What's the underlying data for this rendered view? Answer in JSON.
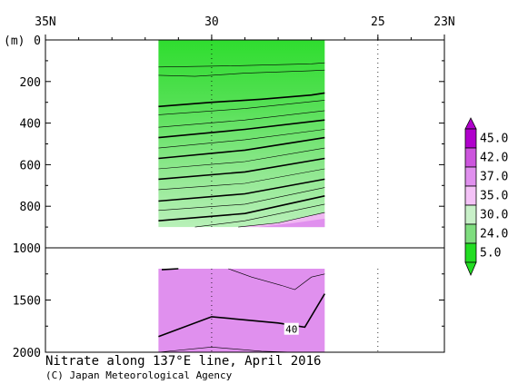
{
  "chart_data": {
    "type": "heatmap",
    "title": "Nitrate along 137°E line, April 2016",
    "credit": "(C) Japan Meteorological Agency",
    "x_axis": {
      "label_unit": "",
      "ticks": [
        "35N",
        "30",
        "25",
        "23N"
      ],
      "tick_values": [
        35,
        30,
        25,
        23
      ],
      "range": [
        35,
        23
      ]
    },
    "y_axis": {
      "unit": "(m)",
      "upper_panel": {
        "range": [
          0,
          1000
        ],
        "ticks": [
          "0",
          "200",
          "400",
          "600",
          "800",
          "1000"
        ]
      },
      "lower_panel": {
        "range": [
          1000,
          2000
        ],
        "ticks": [
          "1500",
          "2000"
        ]
      }
    },
    "data_extent": {
      "lat_north": 31.6,
      "lat_south": 26.6,
      "max_depth_upper": 900,
      "lower_depth_top": 1200
    },
    "colorbar": {
      "labels": [
        "45.0",
        "42.0",
        "37.0",
        "35.0",
        "30.0",
        "24.0",
        "5.0"
      ],
      "colors": [
        "#b000cc",
        "#cc55dd",
        "#e090ee",
        "#f4c2f7",
        "#c8f0c8",
        "#7fdd7f",
        "#22dd22"
      ]
    },
    "fills": {
      "surface_green": "#33dd33",
      "deep_purple": "#e090ee"
    },
    "upper_contours": [
      {
        "name": "c1",
        "heavy": false,
        "pts": [
          [
            31.6,
            130
          ],
          [
            29.5,
            125
          ],
          [
            27.0,
            115
          ],
          [
            26.6,
            110
          ]
        ]
      },
      {
        "name": "c2",
        "heavy": false,
        "pts": [
          [
            31.6,
            170
          ],
          [
            30.5,
            175
          ],
          [
            29.0,
            160
          ],
          [
            27.0,
            148
          ],
          [
            26.6,
            145
          ]
        ]
      },
      {
        "name": "c3",
        "heavy": true,
        "pts": [
          [
            31.6,
            320
          ],
          [
            30.0,
            300
          ],
          [
            28.5,
            285
          ],
          [
            27.0,
            265
          ],
          [
            26.6,
            255
          ]
        ]
      },
      {
        "name": "c4",
        "heavy": false,
        "pts": [
          [
            31.6,
            360
          ],
          [
            29.0,
            330
          ],
          [
            26.6,
            290
          ]
        ]
      },
      {
        "name": "c5",
        "heavy": false,
        "pts": [
          [
            31.6,
            420
          ],
          [
            29.0,
            385
          ],
          [
            26.6,
            340
          ]
        ]
      },
      {
        "name": "c6",
        "heavy": true,
        "pts": [
          [
            31.6,
            470
          ],
          [
            29.0,
            430
          ],
          [
            26.6,
            385
          ]
        ]
      },
      {
        "name": "c7",
        "heavy": false,
        "pts": [
          [
            31.6,
            520
          ],
          [
            29.0,
            480
          ],
          [
            26.6,
            430
          ]
        ]
      },
      {
        "name": "c8",
        "heavy": true,
        "pts": [
          [
            31.6,
            570
          ],
          [
            29.0,
            530
          ],
          [
            26.6,
            470
          ]
        ]
      },
      {
        "name": "c9",
        "heavy": false,
        "pts": [
          [
            31.6,
            620
          ],
          [
            29.0,
            585
          ],
          [
            26.6,
            520
          ]
        ]
      },
      {
        "name": "c10",
        "heavy": true,
        "pts": [
          [
            31.6,
            670
          ],
          [
            29.0,
            635
          ],
          [
            26.6,
            570
          ]
        ]
      },
      {
        "name": "c11",
        "heavy": false,
        "pts": [
          [
            31.6,
            720
          ],
          [
            29.0,
            690
          ],
          [
            26.6,
            620
          ]
        ]
      },
      {
        "name": "c12",
        "heavy": true,
        "pts": [
          [
            31.6,
            775
          ],
          [
            29.0,
            740
          ],
          [
            26.6,
            670
          ]
        ]
      },
      {
        "name": "c13",
        "heavy": false,
        "pts": [
          [
            31.6,
            820
          ],
          [
            29.0,
            790
          ],
          [
            26.6,
            710
          ]
        ]
      },
      {
        "name": "c14",
        "heavy": true,
        "pts": [
          [
            31.6,
            870
          ],
          [
            29.0,
            835
          ],
          [
            26.6,
            750
          ]
        ]
      },
      {
        "name": "c15",
        "heavy": false,
        "pts": [
          [
            30.5,
            900
          ],
          [
            29.0,
            870
          ],
          [
            26.6,
            790
          ]
        ]
      },
      {
        "name": "c16",
        "heavy": false,
        "pts": [
          [
            29.2,
            900
          ],
          [
            28.0,
            880
          ],
          [
            26.6,
            830
          ]
        ]
      }
    ],
    "lower_contours": [
      {
        "name": "d1",
        "heavy": true,
        "pts": [
          [
            31.5,
            1210
          ],
          [
            31.0,
            1200
          ]
        ]
      },
      {
        "name": "d2",
        "heavy": false,
        "pts": [
          [
            29.5,
            1200
          ],
          [
            28.8,
            1280
          ],
          [
            27.9,
            1360
          ],
          [
            27.5,
            1400
          ],
          [
            27.0,
            1280
          ],
          [
            26.6,
            1250
          ]
        ]
      },
      {
        "name": "d3",
        "heavy": true,
        "pts": [
          [
            31.6,
            1850
          ],
          [
            30.0,
            1660
          ],
          [
            28.0,
            1720
          ],
          [
            27.2,
            1760
          ],
          [
            26.6,
            1440
          ]
        ]
      },
      {
        "name": "d4",
        "heavy": false,
        "pts": [
          [
            31.6,
            2000
          ],
          [
            30.0,
            1950
          ],
          [
            28.5,
            1990
          ],
          [
            27.5,
            2000
          ]
        ]
      }
    ],
    "contour_labels": [
      {
        "text": "40",
        "lat": 27.6,
        "depth": 1780
      }
    ]
  }
}
